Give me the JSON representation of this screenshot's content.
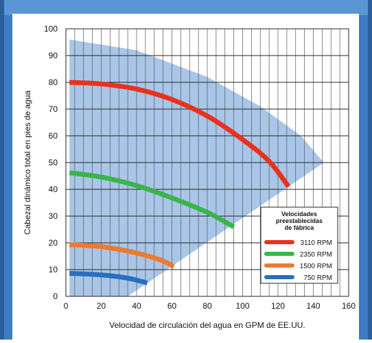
{
  "chart_data": {
    "type": "line",
    "title": "",
    "xlabel": "Velocidad de circulación del agua en GPM de EE.UU.",
    "ylabel": "Cabezal dinámico total en pies de agua",
    "xlim": [
      0,
      160
    ],
    "ylim": [
      0,
      100
    ],
    "x_ticks": [
      0,
      20,
      40,
      60,
      80,
      100,
      120,
      140,
      160
    ],
    "y_ticks": [
      0,
      10,
      20,
      30,
      40,
      50,
      60,
      70,
      80,
      90,
      100
    ],
    "grid": "vertical-fine-and-horizontal-major",
    "legend": {
      "title_lines": [
        "Velocidades",
        "preestablecidas",
        "de fábrica"
      ],
      "placement": "right"
    },
    "operating_region": {
      "color": "#a9c6e8",
      "points": [
        [
          2,
          96
        ],
        [
          40,
          92
        ],
        [
          80,
          82
        ],
        [
          110,
          71
        ],
        [
          133,
          60
        ],
        [
          146,
          50
        ],
        [
          35,
          0
        ],
        [
          2,
          0
        ]
      ]
    },
    "series": [
      {
        "name": "3110 RPM",
        "color": "#e8321e",
        "points": [
          [
            2,
            80
          ],
          [
            20,
            79.4
          ],
          [
            40,
            77.5
          ],
          [
            60,
            73.6
          ],
          [
            80,
            67.4
          ],
          [
            100,
            58.6
          ],
          [
            115,
            50.5
          ],
          [
            126,
            41
          ]
        ]
      },
      {
        "name": "2350 RPM",
        "color": "#3ab549",
        "points": [
          [
            2,
            46.2
          ],
          [
            20,
            44.6
          ],
          [
            40,
            41.4
          ],
          [
            60,
            36.8
          ],
          [
            80,
            31.4
          ],
          [
            95,
            26
          ]
        ]
      },
      {
        "name": "1500 RPM",
        "color": "#ee7a2e",
        "points": [
          [
            2,
            19.3
          ],
          [
            20,
            18.6
          ],
          [
            40,
            16.2
          ],
          [
            55,
            13.2
          ],
          [
            61,
            11
          ]
        ]
      },
      {
        "name": "750 RPM",
        "color": "#2a6fbf",
        "points": [
          [
            2,
            8.6
          ],
          [
            20,
            8
          ],
          [
            35,
            6.8
          ],
          [
            46,
            5
          ]
        ]
      }
    ]
  },
  "colors": {
    "frame": "#3d7cc4",
    "region": "#a9c6e8",
    "grid": "#555555"
  }
}
